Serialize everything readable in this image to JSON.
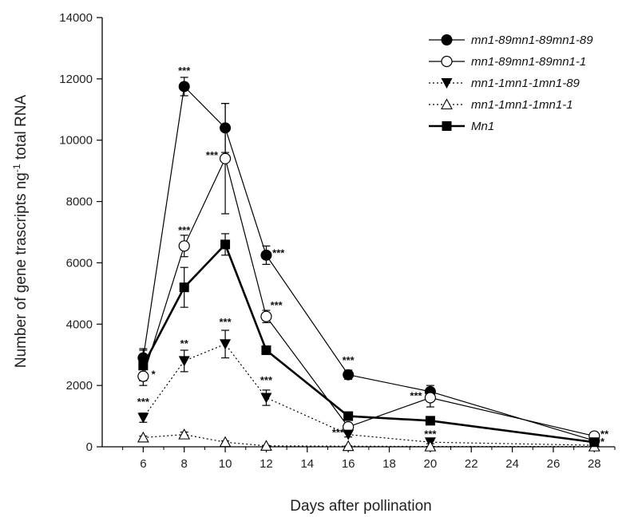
{
  "chart_data": {
    "type": "line",
    "title": "",
    "xlabel": "Days after pollination",
    "ylabel_main": "Number of gene trascripts ng",
    "ylabel_sup": "-1",
    "ylabel_tail": " total RNA",
    "xlim": [
      4,
      29
    ],
    "ylim": [
      0,
      14000
    ],
    "xticks": [
      6,
      8,
      10,
      12,
      14,
      16,
      18,
      20,
      22,
      24,
      26,
      28
    ],
    "yticks": [
      0,
      2000,
      4000,
      6000,
      8000,
      10000,
      12000,
      14000
    ],
    "grid": false,
    "legend_position": "top-right",
    "series": [
      {
        "name": "mn1-89mn1-89mn1-89",
        "marker": "circle-filled",
        "line": "solid",
        "x": [
          6,
          8,
          10,
          12,
          16,
          20,
          28
        ],
        "y": [
          2900,
          11750,
          10400,
          6250,
          2350,
          1800,
          200
        ],
        "err": [
          300,
          300,
          800,
          300,
          150,
          200,
          50
        ]
      },
      {
        "name": "mn1-89mn1-89mn1-1",
        "marker": "circle-open",
        "line": "solid",
        "x": [
          6,
          8,
          10,
          12,
          16,
          20,
          28
        ],
        "y": [
          2300,
          6550,
          9400,
          4250,
          650,
          1600,
          350
        ],
        "err": [
          300,
          350,
          1800,
          200,
          100,
          300,
          60
        ]
      },
      {
        "name": "mn1-1mn1-1mn1-89",
        "marker": "triangle-down-filled",
        "line": "dotted",
        "x": [
          6,
          8,
          10,
          12,
          16,
          20,
          28
        ],
        "y": [
          950,
          2800,
          3350,
          1600,
          400,
          150,
          50
        ],
        "err": [
          150,
          350,
          450,
          250,
          80,
          50,
          20
        ]
      },
      {
        "name": "mn1-1mn1-1mn1-1",
        "marker": "triangle-up-open",
        "line": "dotted",
        "x": [
          6,
          8,
          10,
          12,
          16,
          20,
          28
        ],
        "y": [
          300,
          400,
          150,
          30,
          20,
          10,
          10
        ],
        "err": [
          50,
          80,
          40,
          15,
          10,
          5,
          5
        ]
      },
      {
        "name": "Mn1",
        "marker": "square-filled",
        "line": "thick-solid",
        "x": [
          6,
          8,
          10,
          12,
          16,
          20,
          28
        ],
        "y": [
          2650,
          5200,
          6600,
          3150,
          1000,
          850,
          150
        ],
        "err": [
          500,
          650,
          350,
          120,
          80,
          80,
          40
        ]
      }
    ],
    "annotations": [
      {
        "text": "***",
        "x": 8,
        "y": 12150,
        "anchor": "middle"
      },
      {
        "text": "***",
        "x": 9.65,
        "y": 9400,
        "anchor": "end"
      },
      {
        "text": "***",
        "x": 8,
        "y": 6950,
        "anchor": "middle"
      },
      {
        "text": "***",
        "x": 12.3,
        "y": 6200,
        "anchor": "start"
      },
      {
        "text": "***",
        "x": 12.2,
        "y": 4500,
        "anchor": "start"
      },
      {
        "text": "**",
        "x": 8,
        "y": 3250,
        "anchor": "middle"
      },
      {
        "text": "***",
        "x": 10,
        "y": 3950,
        "anchor": "middle"
      },
      {
        "text": "***",
        "x": 12,
        "y": 2050,
        "anchor": "middle"
      },
      {
        "text": "*",
        "x": 6.4,
        "y": 2250,
        "anchor": "start"
      },
      {
        "text": "***",
        "x": 6,
        "y": 1350,
        "anchor": "middle"
      },
      {
        "text": "***",
        "x": 16,
        "y": 2700,
        "anchor": "middle"
      },
      {
        "text": "***",
        "x": 15.8,
        "y": 350,
        "anchor": "end"
      },
      {
        "text": "***",
        "x": 19.6,
        "y": 1550,
        "anchor": "end"
      },
      {
        "text": "***",
        "x": 20,
        "y": 300,
        "anchor": "middle"
      },
      {
        "text": "**",
        "x": 28.3,
        "y": 300,
        "anchor": "start"
      },
      {
        "text": "*",
        "x": 28.3,
        "y": 50,
        "anchor": "start"
      }
    ]
  }
}
